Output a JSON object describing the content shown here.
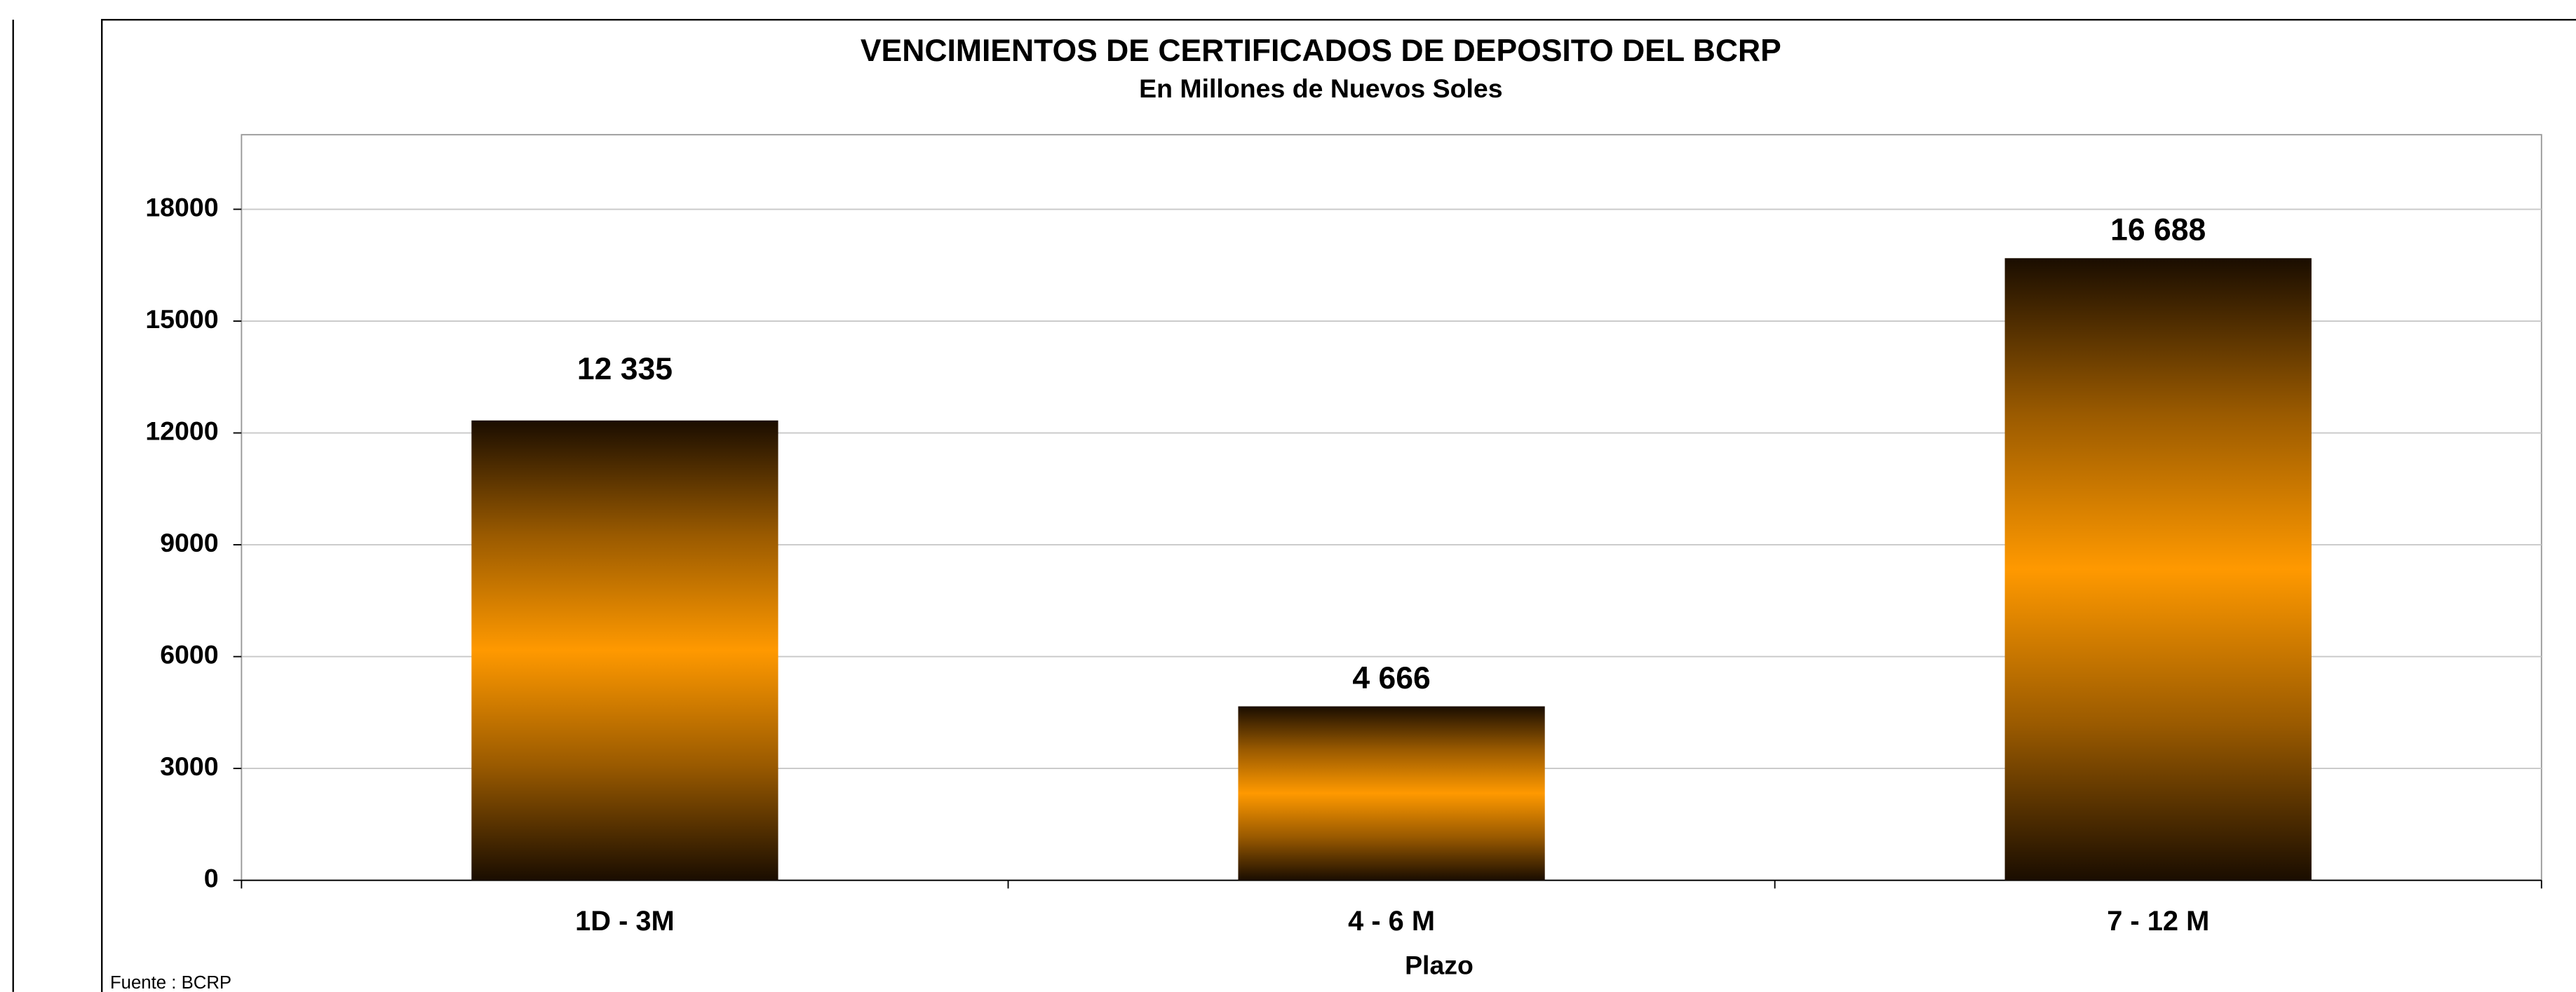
{
  "chart_data": {
    "type": "bar",
    "title": "VENCIMIENTOS DE CERTIFICADOS DE DEPOSITO DEL BCRP",
    "subtitle": "En Millones de Nuevos Soles",
    "x_label": "Plazo",
    "source": "Fuente : BCRP",
    "categories": [
      "1D - 3M",
      "4 - 6 M",
      "7 - 12 M"
    ],
    "values": [
      12335,
      4666,
      16688
    ],
    "value_labels": [
      "12 335",
      "4 666",
      "16 688"
    ],
    "color": "#ff9900",
    "ylim": [
      0,
      20000
    ],
    "yticks": [
      0,
      3000,
      6000,
      9000,
      12000,
      15000,
      18000
    ],
    "grid": true
  }
}
